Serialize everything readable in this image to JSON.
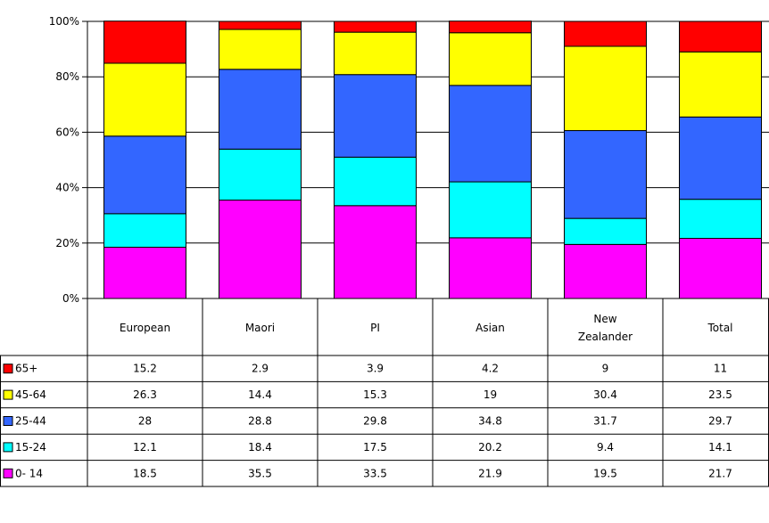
{
  "chart_data": {
    "type": "bar",
    "stacked": true,
    "normalized": true,
    "title": "",
    "xlabel": "",
    "ylabel": "",
    "ylim": [
      0,
      100
    ],
    "y_ticks": [
      "0%",
      "20%",
      "40%",
      "60%",
      "80%",
      "100%"
    ],
    "categories": [
      "European",
      "Maori",
      "PI",
      "Asian",
      "New Zealander",
      "Total"
    ],
    "category_lines": [
      [
        "European"
      ],
      [
        "Maori"
      ],
      [
        "PI"
      ],
      [
        "Asian"
      ],
      [
        "New",
        "Zealander"
      ],
      [
        "Total"
      ]
    ],
    "series": [
      {
        "name": "0- 14",
        "color": "#ff00ff",
        "values": [
          18.5,
          35.5,
          33.5,
          21.9,
          19.5,
          21.7
        ]
      },
      {
        "name": "15-24",
        "color": "#00ffff",
        "values": [
          12.1,
          18.4,
          17.5,
          20.2,
          9.4,
          14.1
        ]
      },
      {
        "name": "25-44",
        "color": "#3366ff",
        "values": [
          28,
          28.8,
          29.8,
          34.8,
          31.7,
          29.7
        ]
      },
      {
        "name": "45-64",
        "color": "#ffff00",
        "values": [
          26.3,
          14.4,
          15.3,
          19,
          30.4,
          23.5
        ]
      },
      {
        "name": "65+",
        "color": "#ff0000",
        "values": [
          15.2,
          2.9,
          3.9,
          4.2,
          9,
          11
        ]
      }
    ],
    "table_rows_order": [
      "65+",
      "45-64",
      "25-44",
      "15-24",
      "0- 14"
    ],
    "table_values": {
      "65+": [
        "15.2",
        "2.9",
        "3.9",
        "4.2",
        "9",
        "11"
      ],
      "45-64": [
        "26.3",
        "14.4",
        "15.3",
        "19",
        "30.4",
        "23.5"
      ],
      "25-44": [
        "28",
        "28.8",
        "29.8",
        "34.8",
        "31.7",
        "29.7"
      ],
      "15-24": [
        "12.1",
        "18.4",
        "17.5",
        "20.2",
        "9.4",
        "14.1"
      ],
      "0- 14": [
        "18.5",
        "35.5",
        "33.5",
        "21.9",
        "19.5",
        "21.7"
      ]
    },
    "grid": true,
    "legend": "data-table"
  }
}
